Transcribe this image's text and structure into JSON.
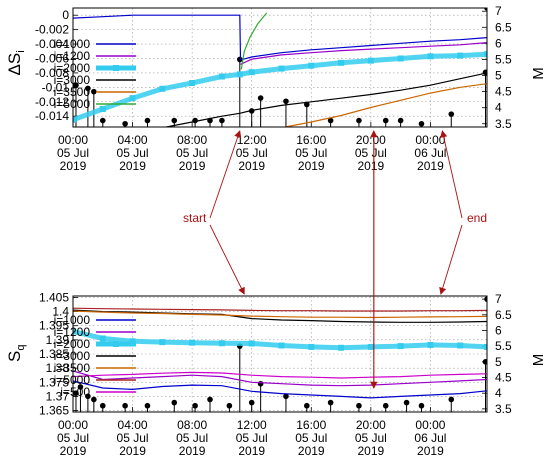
{
  "chart_data": [
    {
      "type": "line",
      "ylabel": "ΔS",
      "ylabel_sub": "i",
      "y2label": "M",
      "ylim": [
        -0.0155,
        0.001
      ],
      "y2lim": [
        3.4,
        7.1
      ],
      "yticks": [
        "0",
        "-0.002",
        "-0.004",
        "-0.006",
        "-0.008",
        "-0.01",
        "-0.012",
        "-0.014"
      ],
      "yticks_values": [
        0,
        -0.002,
        -0.004,
        -0.006,
        -0.008,
        -0.01,
        -0.012,
        -0.014
      ],
      "y2ticks": [
        "7",
        "6.5",
        "6",
        "5.5",
        "5",
        "4.5",
        "4",
        "3.5"
      ],
      "y2ticks_values": [
        7,
        6.5,
        6,
        5.5,
        5,
        4.5,
        4,
        3.5
      ],
      "xticks": [
        {
          "t": 0,
          "l1": "00:00",
          "l2": "05 Jul",
          "l3": "2019"
        },
        {
          "t": 4,
          "l1": "04:00",
          "l2": "05 Jul",
          "l3": "2019"
        },
        {
          "t": 8,
          "l1": "08:00",
          "l2": "05 Jul",
          "l3": "2019"
        },
        {
          "t": 12,
          "l1": "12:00",
          "l2": "05 Jul",
          "l3": "2019"
        },
        {
          "t": 16,
          "l1": "16:00",
          "l2": "05 Jul",
          "l3": "2019"
        },
        {
          "t": 20,
          "l1": "20:00",
          "l2": "05 Jul",
          "l3": "2019"
        },
        {
          "t": 24,
          "l1": "00:00",
          "l2": "06 Jul",
          "l3": "2019"
        }
      ],
      "xlim_hours": [
        0,
        27.8
      ],
      "grid": true,
      "legend_position": "bottom-left",
      "series": [
        {
          "name": "i=1000",
          "color": "#0000cc",
          "style": "line",
          "x": [
            0,
            2,
            4,
            6,
            8,
            10,
            11.2,
            11.25,
            12,
            14,
            16,
            18,
            20,
            22,
            24,
            26,
            27.8
          ],
          "y": [
            -0.0004,
            -0.0002,
            0,
            0,
            0,
            0,
            0,
            -0.0062,
            -0.0058,
            -0.0052,
            -0.0048,
            -0.0045,
            -0.0042,
            -0.0039,
            -0.0036,
            -0.0034,
            -0.0031
          ]
        },
        {
          "name": "i=1200",
          "color": "#9900cc",
          "style": "line",
          "x": [
            11.25,
            12,
            14,
            16,
            18,
            20,
            22,
            24,
            26,
            27.8
          ],
          "y": [
            -0.0068,
            -0.0061,
            -0.0055,
            -0.0052,
            -0.0049,
            -0.0047,
            -0.0045,
            -0.0043,
            -0.0041,
            -0.0038
          ]
        },
        {
          "name": "i=2000",
          "color": "#33ccee",
          "style": "thick-squares",
          "x": [
            0,
            2,
            4,
            6,
            8,
            10,
            11.2,
            12,
            14,
            16,
            18,
            20,
            22,
            24,
            26,
            27.8
          ],
          "y": [
            -0.0145,
            -0.013,
            -0.0115,
            -0.0102,
            -0.0094,
            -0.0085,
            -0.0082,
            -0.0079,
            -0.0074,
            -0.007,
            -0.0066,
            -0.0063,
            -0.006,
            -0.0057,
            -0.0056,
            -0.0054
          ]
        },
        {
          "name": "i=3000",
          "color": "#000000",
          "style": "line",
          "x": [
            5,
            8,
            10,
            11.2,
            12,
            14,
            16,
            18,
            20,
            22,
            24,
            26,
            27.8
          ],
          "y": [
            -0.016,
            -0.0148,
            -0.014,
            -0.0136,
            -0.0132,
            -0.0125,
            -0.012,
            -0.0115,
            -0.011,
            -0.0104,
            -0.0097,
            -0.0088,
            -0.008
          ]
        },
        {
          "name": "i=3500",
          "color": "#cc6600",
          "style": "line",
          "x": [
            12,
            14,
            16,
            18,
            20,
            22,
            24,
            26,
            27.8
          ],
          "y": [
            -0.0165,
            -0.0156,
            -0.0148,
            -0.0139,
            -0.0128,
            -0.0118,
            -0.0108,
            -0.01,
            -0.0095
          ]
        },
        {
          "name": "i=5000",
          "color": "#33aa33",
          "style": "line",
          "x": [
            11.3,
            11.5,
            11.9,
            12.4,
            13.0
          ],
          "y": [
            -0.0075,
            -0.005,
            -0.003,
            -0.0012,
            0.0003
          ]
        }
      ],
      "events": [
        {
          "t": 0.2,
          "m": 4.7
        },
        {
          "t": 1.0,
          "m": 4.6
        },
        {
          "t": 1.4,
          "m": 4.5
        },
        {
          "t": 2.0,
          "m": 3.6
        },
        {
          "t": 3.5,
          "m": 3.5
        },
        {
          "t": 5.0,
          "m": 3.6
        },
        {
          "t": 6.8,
          "m": 3.6
        },
        {
          "t": 8.2,
          "m": 3.6
        },
        {
          "t": 9.2,
          "m": 3.6
        },
        {
          "t": 10.0,
          "m": 3.6
        },
        {
          "t": 11.2,
          "m": 5.5
        },
        {
          "t": 12.0,
          "m": 3.9
        },
        {
          "t": 12.6,
          "m": 4.3
        },
        {
          "t": 14.3,
          "m": 4.2
        },
        {
          "t": 15.7,
          "m": 4.1
        },
        {
          "t": 17.3,
          "m": 3.6
        },
        {
          "t": 19.2,
          "m": 3.6
        },
        {
          "t": 21.0,
          "m": 3.6
        },
        {
          "t": 22.0,
          "m": 3.6
        },
        {
          "t": 23.4,
          "m": 3.5
        },
        {
          "t": 25.4,
          "m": 3.8
        },
        {
          "t": 27.7,
          "m": 5.1
        },
        {
          "t": 27.8,
          "m": 7.1
        }
      ]
    },
    {
      "type": "line",
      "ylabel": "S",
      "ylabel_sub": "q",
      "y2label": "M",
      "ylim": [
        1.3645,
        1.4055
      ],
      "y2lim": [
        3.4,
        7.1
      ],
      "yticks": [
        "1.405",
        "1.4",
        "1.395",
        "1.39",
        "1.385",
        "1.38",
        "1.375",
        "1.37",
        "1.365"
      ],
      "yticks_values": [
        1.405,
        1.4,
        1.395,
        1.39,
        1.385,
        1.38,
        1.375,
        1.37,
        1.365
      ],
      "y2ticks": [
        "7",
        "6.5",
        "6",
        "5.5",
        "5",
        "4.5",
        "4",
        "3.5"
      ],
      "y2ticks_values": [
        7,
        6.5,
        6,
        5.5,
        5,
        4.5,
        4,
        3.5
      ],
      "xticks": [
        {
          "t": 0,
          "l1": "00:00",
          "l2": "05 Jul",
          "l3": "2019"
        },
        {
          "t": 4,
          "l1": "04:00",
          "l2": "05 Jul",
          "l3": "2019"
        },
        {
          "t": 8,
          "l1": "08:00",
          "l2": "05 Jul",
          "l3": "2019"
        },
        {
          "t": 12,
          "l1": "12:00",
          "l2": "05 Jul",
          "l3": "2019"
        },
        {
          "t": 16,
          "l1": "16:00",
          "l2": "05 Jul",
          "l3": "2019"
        },
        {
          "t": 20,
          "l1": "20:00",
          "l2": "05 Jul",
          "l3": "2019"
        },
        {
          "t": 24,
          "l1": "00:00",
          "l2": "06 Jul",
          "l3": "2019"
        }
      ],
      "xlim_hours": [
        0,
        27.8
      ],
      "grid": true,
      "legend_position": "bottom-left",
      "series": [
        {
          "name": "i=1000",
          "color": "#0000cc",
          "style": "line",
          "x": [
            0,
            2,
            4,
            6,
            8,
            10,
            12,
            14,
            16,
            18,
            20,
            22,
            24,
            26,
            27.8
          ],
          "y": [
            1.3755,
            1.373,
            1.3725,
            1.3735,
            1.374,
            1.3738,
            1.3718,
            1.371,
            1.3705,
            1.37,
            1.3695,
            1.37,
            1.3705,
            1.371,
            1.372
          ]
        },
        {
          "name": "i=1200",
          "color": "#9900cc",
          "style": "line",
          "x": [
            0,
            2,
            4,
            6,
            8,
            10,
            12,
            14,
            16,
            18,
            20,
            22,
            24,
            26,
            27.8
          ],
          "y": [
            1.379,
            1.376,
            1.3765,
            1.377,
            1.3775,
            1.377,
            1.375,
            1.3745,
            1.374,
            1.3738,
            1.374,
            1.3745,
            1.375,
            1.3755,
            1.376
          ]
        },
        {
          "name": "i=2000",
          "color": "#33ccee",
          "style": "thick-squares",
          "x": [
            0,
            2,
            4,
            6,
            8,
            10,
            12,
            14,
            16,
            18,
            20,
            22,
            24,
            26,
            27.8
          ],
          "y": [
            1.393,
            1.3905,
            1.3895,
            1.3892,
            1.389,
            1.3888,
            1.3887,
            1.388,
            1.3875,
            1.3872,
            1.3875,
            1.3878,
            1.3882,
            1.388,
            1.3875
          ]
        },
        {
          "name": "i=3000",
          "color": "#000000",
          "style": "line",
          "x": [
            0,
            2,
            4,
            6,
            8,
            10,
            12,
            14,
            16,
            18,
            20,
            22,
            24,
            26,
            27.8
          ],
          "y": [
            1.4005,
            1.4,
            1.3998,
            1.3995,
            1.3992,
            1.399,
            1.3975,
            1.397,
            1.3968,
            1.3965,
            1.3963,
            1.3962,
            1.3962,
            1.3963,
            1.3965
          ]
        },
        {
          "name": "i=3500",
          "color": "#cc6600",
          "style": "line",
          "x": [
            0,
            2,
            4,
            6,
            8,
            10,
            12,
            14,
            16,
            18,
            20,
            22,
            24,
            26,
            27.8
          ],
          "y": [
            1.4002,
            1.3998,
            1.3995,
            1.3993,
            1.399,
            1.3988,
            1.3984,
            1.3982,
            1.398,
            1.398,
            1.3979,
            1.398,
            1.3981,
            1.3982,
            1.3983
          ]
        },
        {
          "name": "i=5000",
          "color": "#aa2222",
          "style": "line",
          "x": [
            0,
            2,
            4,
            6,
            8,
            10,
            12,
            14,
            16,
            18,
            20,
            22,
            24,
            26,
            27.8
          ],
          "y": [
            1.4012,
            1.401,
            1.4009,
            1.4008,
            1.4007,
            1.4006,
            1.4004,
            1.4003,
            1.4003,
            1.4002,
            1.4002,
            1.4002,
            1.4003,
            1.4003,
            1.4004
          ]
        },
        {
          "name": "i=500",
          "color": "#cc00cc",
          "style": "line",
          "x": [
            0,
            2,
            4,
            6,
            8,
            10,
            12,
            14,
            16,
            18,
            20,
            22,
            24,
            26,
            27.8
          ],
          "y": [
            1.377,
            1.3775,
            1.3778,
            1.3782,
            1.3785,
            1.3783,
            1.3775,
            1.377,
            1.3768,
            1.3765,
            1.3768,
            1.377,
            1.3775,
            1.3778,
            1.378
          ]
        }
      ],
      "events": [
        {
          "t": 0.2,
          "m": 4.0
        },
        {
          "t": 0.5,
          "m": 4.2
        },
        {
          "t": 1.0,
          "m": 3.9
        },
        {
          "t": 1.4,
          "m": 3.8
        },
        {
          "t": 2.0,
          "m": 3.6
        },
        {
          "t": 3.5,
          "m": 3.6
        },
        {
          "t": 5.0,
          "m": 3.6
        },
        {
          "t": 6.8,
          "m": 3.7
        },
        {
          "t": 8.2,
          "m": 3.6
        },
        {
          "t": 9.2,
          "m": 3.8
        },
        {
          "t": 10.5,
          "m": 3.6
        },
        {
          "t": 11.2,
          "m": 5.5
        },
        {
          "t": 12.0,
          "m": 3.7
        },
        {
          "t": 12.6,
          "m": 4.3
        },
        {
          "t": 14.3,
          "m": 3.9
        },
        {
          "t": 15.7,
          "m": 3.6
        },
        {
          "t": 17.3,
          "m": 3.7
        },
        {
          "t": 19.2,
          "m": 3.6
        },
        {
          "t": 21.0,
          "m": 3.6
        },
        {
          "t": 22.4,
          "m": 3.7
        },
        {
          "t": 23.4,
          "m": 3.6
        },
        {
          "t": 25.4,
          "m": 3.8
        },
        {
          "t": 27.7,
          "m": 5.0
        },
        {
          "t": 27.8,
          "m": 7.0
        }
      ]
    }
  ],
  "annotations": [
    {
      "text": "start",
      "color": "#aa1111"
    },
    {
      "text": "end",
      "color": "#aa1111"
    }
  ]
}
